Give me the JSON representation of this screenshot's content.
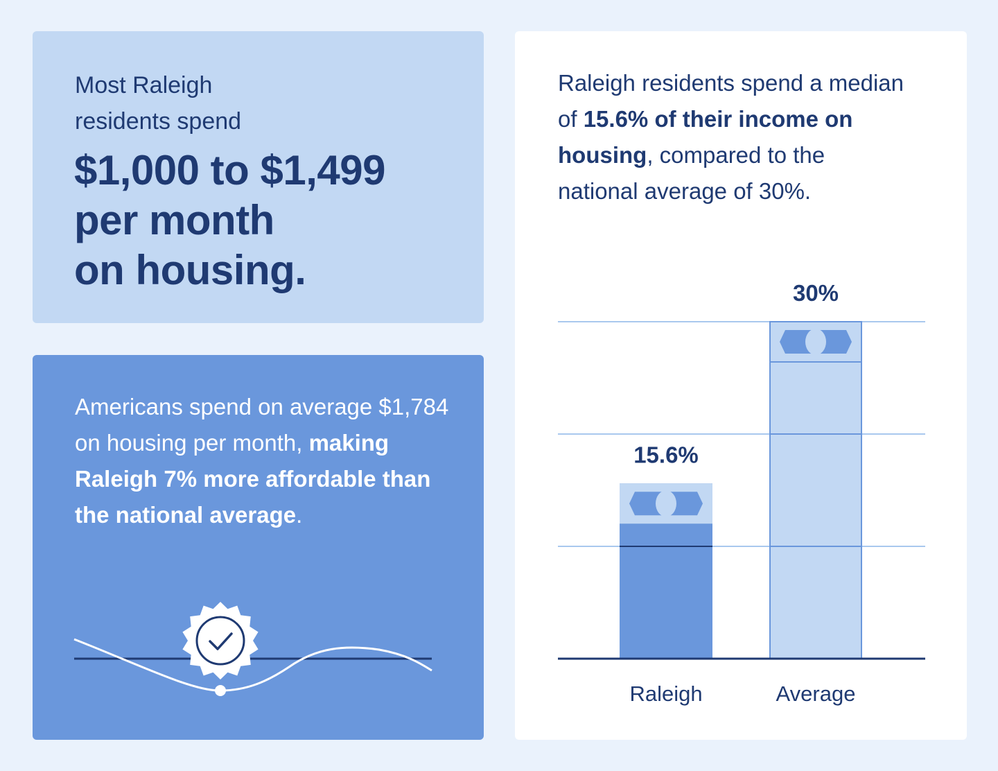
{
  "top_left": {
    "intro_line1": "Most Raleigh",
    "intro_line2": "residents spend",
    "headline_line1": "$1,000 to $1,499",
    "headline_line2": "per month",
    "headline_line3": "on housing."
  },
  "bottom_left": {
    "text_plain": "Americans spend on average $1,784 on housing per month, ",
    "text_bold": "making Raleigh 7% more affordable than the national average",
    "text_end": "."
  },
  "right": {
    "text_part1": "Raleigh residents spend a median of ",
    "text_bold": "15.6% of their income on housing",
    "text_part2": ", compared to the national average of 30%."
  },
  "colors": {
    "page_bg": "#eaf2fc",
    "navy": "#1f3a72",
    "medium_blue": "#6a97dc",
    "light_blue": "#c2d8f3"
  },
  "icons": [
    "check-badge-icon",
    "wave-line-icon",
    "dollar-bill-icon"
  ],
  "chart_data": {
    "type": "bar",
    "categories": [
      "Raleigh",
      "Average"
    ],
    "values": [
      15.6,
      30
    ],
    "value_labels": [
      "15.6%",
      "30%"
    ],
    "ylim": [
      0,
      30
    ],
    "grid": true,
    "title": "",
    "xlabel": "",
    "ylabel": ""
  }
}
